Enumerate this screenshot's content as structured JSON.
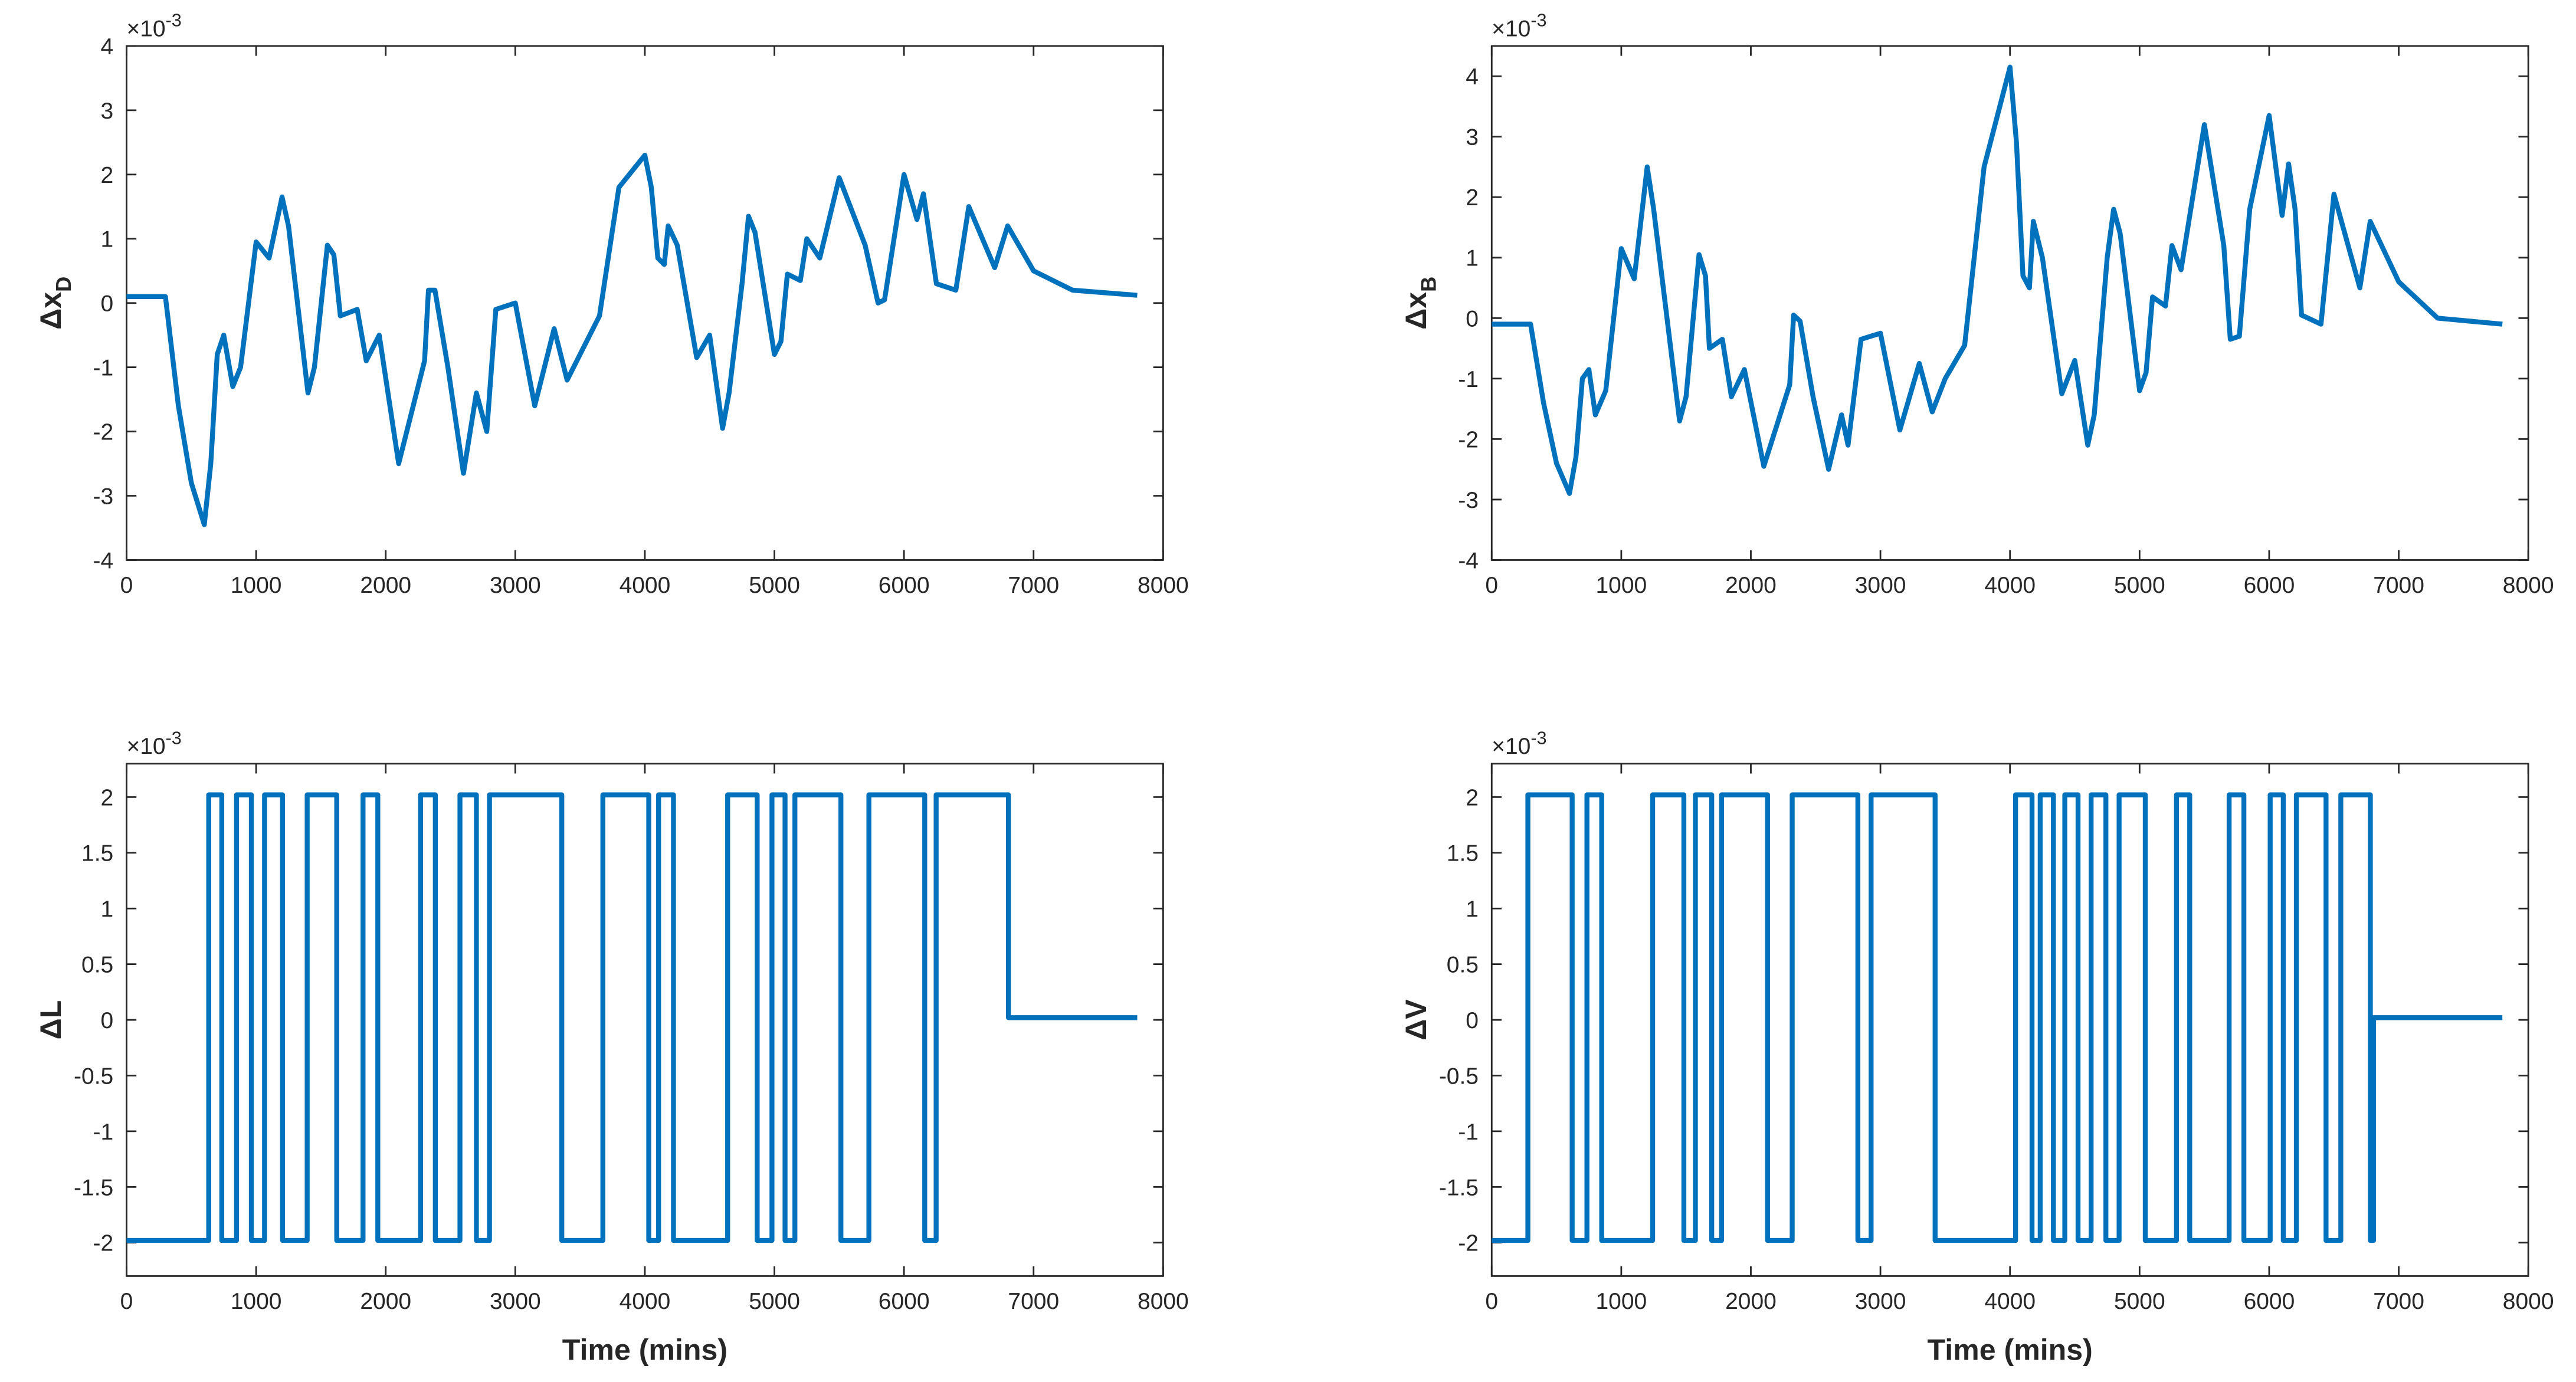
{
  "chart_data": [
    {
      "type": "line",
      "ylabel": "Δx",
      "ylabel_sub": "D",
      "multiplier_base": "×10",
      "multiplier_exp": "-3",
      "color": "#0072bd",
      "xlim": [
        0,
        8000
      ],
      "xticks": [
        0,
        1000,
        2000,
        3000,
        4000,
        5000,
        6000,
        7000,
        8000
      ],
      "ylim": [
        -4,
        4
      ],
      "yticks": [
        -4,
        -3,
        -2,
        -1,
        0,
        1,
        2,
        3,
        4
      ],
      "x": [
        0,
        300,
        400,
        500,
        600,
        650,
        700,
        750,
        820,
        880,
        1000,
        1100,
        1200,
        1250,
        1400,
        1450,
        1550,
        1600,
        1650,
        1780,
        1850,
        1950,
        2100,
        2300,
        2330,
        2380,
        2480,
        2600,
        2700,
        2780,
        2850,
        3000,
        3150,
        3300,
        3400,
        3500,
        3650,
        3800,
        4000,
        4050,
        4100,
        4150,
        4180,
        4250,
        4400,
        4500,
        4600,
        4650,
        4750,
        4800,
        4850,
        5000,
        5050,
        5100,
        5200,
        5250,
        5350,
        5500,
        5700,
        5800,
        5850,
        6000,
        6100,
        6150,
        6250,
        6400,
        6500,
        6700,
        6800,
        7000,
        7300,
        7800
      ],
      "values": [
        0.1,
        0.1,
        -1.6,
        -2.8,
        -3.45,
        -2.5,
        -0.8,
        -0.5,
        -1.3,
        -1.0,
        0.95,
        0.7,
        1.65,
        1.2,
        -1.4,
        -1.0,
        0.9,
        0.75,
        -0.2,
        -0.1,
        -0.9,
        -0.5,
        -2.5,
        -0.9,
        0.2,
        0.2,
        -1.0,
        -2.65,
        -1.4,
        -2.0,
        -0.1,
        0.0,
        -1.6,
        -0.4,
        -1.2,
        -0.8,
        -0.2,
        1.8,
        2.3,
        1.8,
        0.7,
        0.6,
        1.2,
        0.9,
        -0.85,
        -0.5,
        -1.95,
        -1.4,
        0.3,
        1.35,
        1.1,
        -0.8,
        -0.6,
        0.45,
        0.35,
        1.0,
        0.7,
        1.95,
        0.9,
        0.0,
        0.05,
        2.0,
        1.3,
        1.7,
        0.3,
        0.2,
        1.5,
        0.55,
        1.2,
        0.5,
        0.2,
        0.12
      ]
    },
    {
      "type": "line",
      "ylabel": "Δx",
      "ylabel_sub": "B",
      "multiplier_base": "×10",
      "multiplier_exp": "-3",
      "color": "#0072bd",
      "xlim": [
        0,
        8000
      ],
      "xticks": [
        0,
        1000,
        2000,
        3000,
        4000,
        5000,
        6000,
        7000,
        8000
      ],
      "ylim": [
        -4,
        4.5
      ],
      "yticks": [
        -4,
        -3,
        -2,
        -1,
        0,
        1,
        2,
        3,
        4
      ],
      "x": [
        0,
        300,
        400,
        500,
        600,
        650,
        700,
        750,
        800,
        880,
        1000,
        1100,
        1200,
        1250,
        1450,
        1500,
        1600,
        1650,
        1680,
        1780,
        1850,
        1950,
        2100,
        2300,
        2330,
        2380,
        2480,
        2600,
        2700,
        2750,
        2850,
        3000,
        3150,
        3300,
        3400,
        3500,
        3650,
        3800,
        4000,
        4050,
        4100,
        4150,
        4180,
        4250,
        4400,
        4500,
        4600,
        4650,
        4750,
        4800,
        4850,
        5000,
        5050,
        5100,
        5200,
        5250,
        5320,
        5500,
        5650,
        5700,
        5770,
        5850,
        6000,
        6100,
        6150,
        6200,
        6250,
        6400,
        6500,
        6700,
        6780,
        7000,
        7300,
        7800
      ],
      "values": [
        -0.1,
        -0.1,
        -1.4,
        -2.4,
        -2.9,
        -2.3,
        -1.0,
        -0.85,
        -1.6,
        -1.2,
        1.15,
        0.65,
        2.5,
        1.8,
        -1.7,
        -1.3,
        1.05,
        0.7,
        -0.5,
        -0.35,
        -1.3,
        -0.85,
        -2.45,
        -1.1,
        0.05,
        -0.05,
        -1.3,
        -2.5,
        -1.6,
        -2.1,
        -0.35,
        -0.25,
        -1.85,
        -0.75,
        -1.55,
        -1.0,
        -0.45,
        2.5,
        4.15,
        2.9,
        0.7,
        0.5,
        1.6,
        1.0,
        -1.25,
        -0.7,
        -2.1,
        -1.6,
        1.0,
        1.8,
        1.4,
        -1.2,
        -0.9,
        0.35,
        0.2,
        1.2,
        0.8,
        3.2,
        1.2,
        -0.35,
        -0.3,
        1.8,
        3.35,
        1.7,
        2.55,
        1.8,
        0.05,
        -0.1,
        2.05,
        0.5,
        1.6,
        0.6,
        0.0,
        -0.1
      ]
    },
    {
      "type": "line",
      "ylabel": "ΔL",
      "multiplier_base": "×10",
      "multiplier_exp": "-3",
      "xlabel": "Time (mins)",
      "color": "#0072bd",
      "xlim": [
        0,
        8000
      ],
      "xticks": [
        0,
        1000,
        2000,
        3000,
        4000,
        5000,
        6000,
        7000,
        8000
      ],
      "ylim": [
        -2.3,
        2.3
      ],
      "yticks": [
        -2,
        -1.5,
        -1,
        -0.5,
        0,
        0.5,
        1,
        1.5,
        2
      ],
      "x": [
        0,
        634,
        634,
        735,
        735,
        849,
        849,
        963,
        963,
        1065,
        1065,
        1204,
        1204,
        1394,
        1394,
        1622,
        1622,
        1825,
        1825,
        1939,
        1939,
        2269,
        2269,
        2383,
        2383,
        2573,
        2573,
        2700,
        2700,
        2801,
        2801,
        3359,
        3359,
        3676,
        3676,
        4030,
        4030,
        4106,
        4106,
        4221,
        4221,
        4639,
        4639,
        4867,
        4867,
        4981,
        4981,
        5082,
        5082,
        5158,
        5158,
        5513,
        5513,
        5729,
        5729,
        6160,
        6160,
        6248,
        6248,
        6806,
        6806,
        7800
      ],
      "values": [
        -1.98,
        -1.98,
        2.02,
        2.02,
        -1.98,
        -1.98,
        2.02,
        2.02,
        -1.98,
        -1.98,
        2.02,
        2.02,
        -1.98,
        -1.98,
        2.02,
        2.02,
        -1.98,
        -1.98,
        2.02,
        2.02,
        -1.98,
        -1.98,
        2.02,
        2.02,
        -1.98,
        -1.98,
        2.02,
        2.02,
        -1.98,
        -1.98,
        2.02,
        2.02,
        -1.98,
        -1.98,
        2.02,
        2.02,
        -1.98,
        -1.98,
        2.02,
        2.02,
        -1.98,
        -1.98,
        2.02,
        2.02,
        -1.98,
        -1.98,
        2.02,
        2.02,
        -1.98,
        -1.98,
        2.02,
        2.02,
        -1.98,
        -1.98,
        2.02,
        2.02,
        -1.98,
        -1.98,
        2.02,
        2.02,
        0.02,
        0.02
      ]
    },
    {
      "type": "line",
      "ylabel": "ΔV",
      "multiplier_base": "×10",
      "multiplier_exp": "-3",
      "xlabel": "Time (mins)",
      "color": "#0072bd",
      "xlim": [
        0,
        8000
      ],
      "xticks": [
        0,
        1000,
        2000,
        3000,
        4000,
        5000,
        6000,
        7000,
        8000
      ],
      "ylim": [
        -2.3,
        2.3
      ],
      "yticks": [
        -2,
        -1.5,
        -1,
        -0.5,
        0,
        0.5,
        1,
        1.5,
        2
      ],
      "x": [
        0,
        279,
        279,
        621,
        621,
        735,
        735,
        849,
        849,
        1242,
        1242,
        1483,
        1483,
        1572,
        1572,
        1698,
        1698,
        1774,
        1774,
        2129,
        2129,
        2319,
        2319,
        2826,
        2826,
        2928,
        2928,
        3422,
        3422,
        4043,
        4043,
        4170,
        4170,
        4233,
        4233,
        4335,
        4335,
        4423,
        4423,
        4525,
        4525,
        4626,
        4626,
        4740,
        4740,
        4842,
        4842,
        5044,
        5044,
        5285,
        5285,
        5387,
        5387,
        5691,
        5691,
        5805,
        5805,
        6008,
        6008,
        6109,
        6109,
        6210,
        6210,
        6439,
        6439,
        6553,
        6553,
        6781,
        6781,
        6806,
        6806,
        7800
      ],
      "values": [
        -1.98,
        -1.98,
        2.02,
        2.02,
        -1.98,
        -1.98,
        2.02,
        2.02,
        -1.98,
        -1.98,
        2.02,
        2.02,
        -1.98,
        -1.98,
        2.02,
        2.02,
        -1.98,
        -1.98,
        2.02,
        2.02,
        -1.98,
        -1.98,
        2.02,
        2.02,
        -1.98,
        -1.98,
        2.02,
        2.02,
        -1.98,
        -1.98,
        2.02,
        2.02,
        -1.98,
        -1.98,
        2.02,
        2.02,
        -1.98,
        -1.98,
        2.02,
        2.02,
        -1.98,
        -1.98,
        2.02,
        2.02,
        -1.98,
        -1.98,
        2.02,
        2.02,
        -1.98,
        -1.98,
        2.02,
        2.02,
        -1.98,
        -1.98,
        2.02,
        2.02,
        -1.98,
        -1.98,
        2.02,
        2.02,
        -1.98,
        -1.98,
        2.02,
        2.02,
        -1.98,
        -1.98,
        2.02,
        2.02,
        -1.98,
        -1.98,
        0.02,
        0.02
      ]
    }
  ]
}
